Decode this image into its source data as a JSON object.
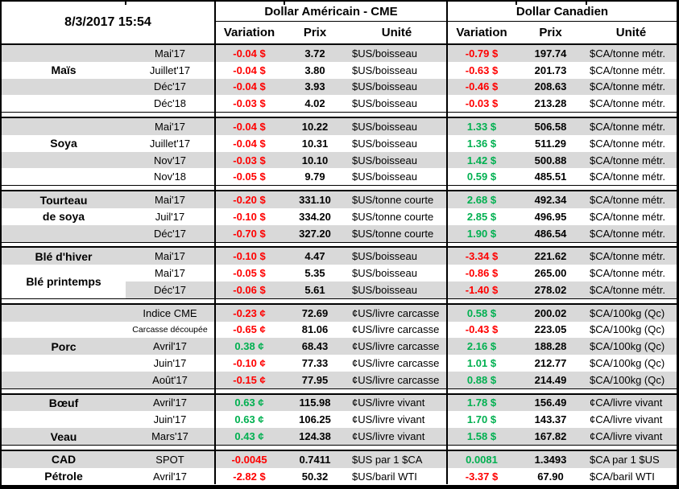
{
  "meta": {
    "timestamp": "8/3/2017 15:54"
  },
  "header": {
    "us_group": "Dollar Américain - CME",
    "ca_group": "Dollar Canadien",
    "cols": {
      "variation": "Variation",
      "prix": "Prix",
      "unite": "Unité"
    }
  },
  "colors": {
    "negative": "#FF0000",
    "positive": "#00B050",
    "stripe": "#D9D9D9",
    "border": "#000000"
  },
  "groups": [
    {
      "commodity": "Maïs",
      "rows": [
        {
          "name": "",
          "month": "Mai'17",
          "us_var": "-0.04 $",
          "us_prix": "3.72",
          "us_unit": "$US/boisseau",
          "ca_var": "-0.79 $",
          "ca_prix": "197.74",
          "ca_unit": "$CA/tonne métr."
        },
        {
          "name": "Maïs",
          "month": "Juillet'17",
          "us_var": "-0.04 $",
          "us_prix": "3.80",
          "us_unit": "$US/boisseau",
          "ca_var": "-0.63 $",
          "ca_prix": "201.73",
          "ca_unit": "$CA/tonne métr."
        },
        {
          "name": "",
          "month": "Déc'17",
          "us_var": "-0.04 $",
          "us_prix": "3.93",
          "us_unit": "$US/boisseau",
          "ca_var": "-0.46 $",
          "ca_prix": "208.63",
          "ca_unit": "$CA/tonne métr."
        },
        {
          "name": "",
          "month": "Déc'18",
          "us_var": "-0.03 $",
          "us_prix": "4.02",
          "us_unit": "$US/boisseau",
          "ca_var": "-0.03 $",
          "ca_prix": "213.28",
          "ca_unit": "$CA/tonne métr."
        }
      ]
    },
    {
      "commodity": "Soya",
      "rows": [
        {
          "name": "",
          "month": "Mai'17",
          "us_var": "-0.04 $",
          "us_prix": "10.22",
          "us_unit": "$US/boisseau",
          "ca_var": "1.33 $",
          "ca_prix": "506.58",
          "ca_unit": "$CA/tonne métr."
        },
        {
          "name": "Soya",
          "month": "Juillet'17",
          "us_var": "-0.04 $",
          "us_prix": "10.31",
          "us_unit": "$US/boisseau",
          "ca_var": "1.36 $",
          "ca_prix": "511.29",
          "ca_unit": "$CA/tonne métr."
        },
        {
          "name": "",
          "month": "Nov'17",
          "us_var": "-0.03 $",
          "us_prix": "10.10",
          "us_unit": "$US/boisseau",
          "ca_var": "1.42 $",
          "ca_prix": "500.88",
          "ca_unit": "$CA/tonne métr."
        },
        {
          "name": "",
          "month": "Nov'18",
          "us_var": "-0.05 $",
          "us_prix": "9.79",
          "us_unit": "$US/boisseau",
          "ca_var": "0.59 $",
          "ca_prix": "485.51",
          "ca_unit": "$CA/tonne métr."
        }
      ]
    },
    {
      "commodity": "Tourteau de soya",
      "rows": [
        {
          "name": "Tourteau",
          "month": "Mai'17",
          "us_var": "-0.20 $",
          "us_prix": "331.10",
          "us_unit": "$US/tonne courte",
          "ca_var": "2.68 $",
          "ca_prix": "492.34",
          "ca_unit": "$CA/tonne métr."
        },
        {
          "name": "de soya",
          "month": "Juil'17",
          "us_var": "-0.10 $",
          "us_prix": "334.20",
          "us_unit": "$US/tonne courte",
          "ca_var": "2.85 $",
          "ca_prix": "496.95",
          "ca_unit": "$CA/tonne métr."
        },
        {
          "name": "",
          "month": "Déc'17",
          "us_var": "-0.70 $",
          "us_prix": "327.20",
          "us_unit": "$US/tonne courte",
          "ca_var": "1.90 $",
          "ca_prix": "486.54",
          "ca_unit": "$CA/tonne métr."
        }
      ]
    },
    {
      "commodity": "Blé",
      "merged_name": {
        "label": "Blé printemps",
        "start_row": 1,
        "span": 2
      },
      "rows": [
        {
          "name": "Blé d'hiver",
          "month": "Mai'17",
          "us_var": "-0.10 $",
          "us_prix": "4.47",
          "us_unit": "$US/boisseau",
          "ca_var": "-3.34 $",
          "ca_prix": "221.62",
          "ca_unit": "$CA/tonne métr."
        },
        {
          "name": "",
          "month": "Mai'17",
          "us_var": "-0.05 $",
          "us_prix": "5.35",
          "us_unit": "$US/boisseau",
          "ca_var": "-0.86 $",
          "ca_prix": "265.00",
          "ca_unit": "$CA/tonne métr."
        },
        {
          "name": "",
          "month": "Déc'17",
          "us_var": "-0.06 $",
          "us_prix": "5.61",
          "us_unit": "$US/boisseau",
          "ca_var": "-1.40 $",
          "ca_prix": "278.02",
          "ca_unit": "$CA/tonne métr."
        }
      ]
    },
    {
      "commodity": "Porc",
      "rows": [
        {
          "name": "",
          "month": "Indice CME",
          "us_var": "-0.23 ¢",
          "us_prix": "72.69",
          "us_unit": "¢US/livre carcasse",
          "ca_var": "0.58 $",
          "ca_prix": "200.02",
          "ca_unit": "$CA/100kg (Qc)"
        },
        {
          "name": "",
          "month": "Carcasse découpée",
          "month_small": true,
          "us_var": "-0.65 ¢",
          "us_prix": "81.06",
          "us_unit": "¢US/livre carcasse",
          "ca_var": "-0.43 $",
          "ca_prix": "223.05",
          "ca_unit": "$CA/100kg (Qc)"
        },
        {
          "name": "Porc",
          "month": "Avril'17",
          "us_var": "0.38 ¢",
          "us_prix": "68.43",
          "us_unit": "¢US/livre carcasse",
          "ca_var": "2.16 $",
          "ca_prix": "188.28",
          "ca_unit": "$CA/100kg (Qc)"
        },
        {
          "name": "",
          "month": "Juin'17",
          "us_var": "-0.10 ¢",
          "us_prix": "77.33",
          "us_unit": "¢US/livre carcasse",
          "ca_var": "1.01 $",
          "ca_prix": "212.77",
          "ca_unit": "$CA/100kg (Qc)"
        },
        {
          "name": "",
          "month": "Août'17",
          "us_var": "-0.15 ¢",
          "us_prix": "77.95",
          "us_unit": "¢US/livre carcasse",
          "ca_var": "0.88 $",
          "ca_prix": "214.49",
          "ca_unit": "$CA/100kg (Qc)"
        }
      ]
    },
    {
      "commodity": "Bœuf / Veau",
      "rows": [
        {
          "name": "Bœuf",
          "month": "Avril'17",
          "us_var": "0.63 ¢",
          "us_prix": "115.98",
          "us_unit": "¢US/livre vivant",
          "ca_var": "1.78 $",
          "ca_prix": "156.49",
          "ca_unit": "¢CA/livre vivant"
        },
        {
          "name": "",
          "month": "Juin'17",
          "us_var": "0.63 ¢",
          "us_prix": "106.25",
          "us_unit": "¢US/livre vivant",
          "ca_var": "1.70 $",
          "ca_prix": "143.37",
          "ca_unit": "¢CA/livre vivant"
        },
        {
          "name": "Veau",
          "month": "Mars'17",
          "us_var": "0.43 ¢",
          "us_prix": "124.38",
          "us_unit": "¢US/livre vivant",
          "ca_var": "1.58 $",
          "ca_prix": "167.82",
          "ca_unit": "¢CA/livre vivant"
        }
      ]
    },
    {
      "commodity": "CAD / Pétrole",
      "rows": [
        {
          "name": "CAD",
          "month": "SPOT",
          "us_var": "-0.0045",
          "us_prix": "0.7411",
          "us_unit": "$US par 1 $CA",
          "ca_var": "0.0081",
          "ca_prix": "1.3493",
          "ca_unit": "$CA par 1 $US"
        },
        {
          "name": "Pétrole",
          "month": "Avril'17",
          "us_var": "-2.82 $",
          "us_prix": "50.32",
          "us_unit": "$US/baril WTI",
          "ca_var": "-3.37 $",
          "ca_prix": "67.90",
          "ca_unit": "$CA/baril WTI"
        }
      ]
    }
  ]
}
